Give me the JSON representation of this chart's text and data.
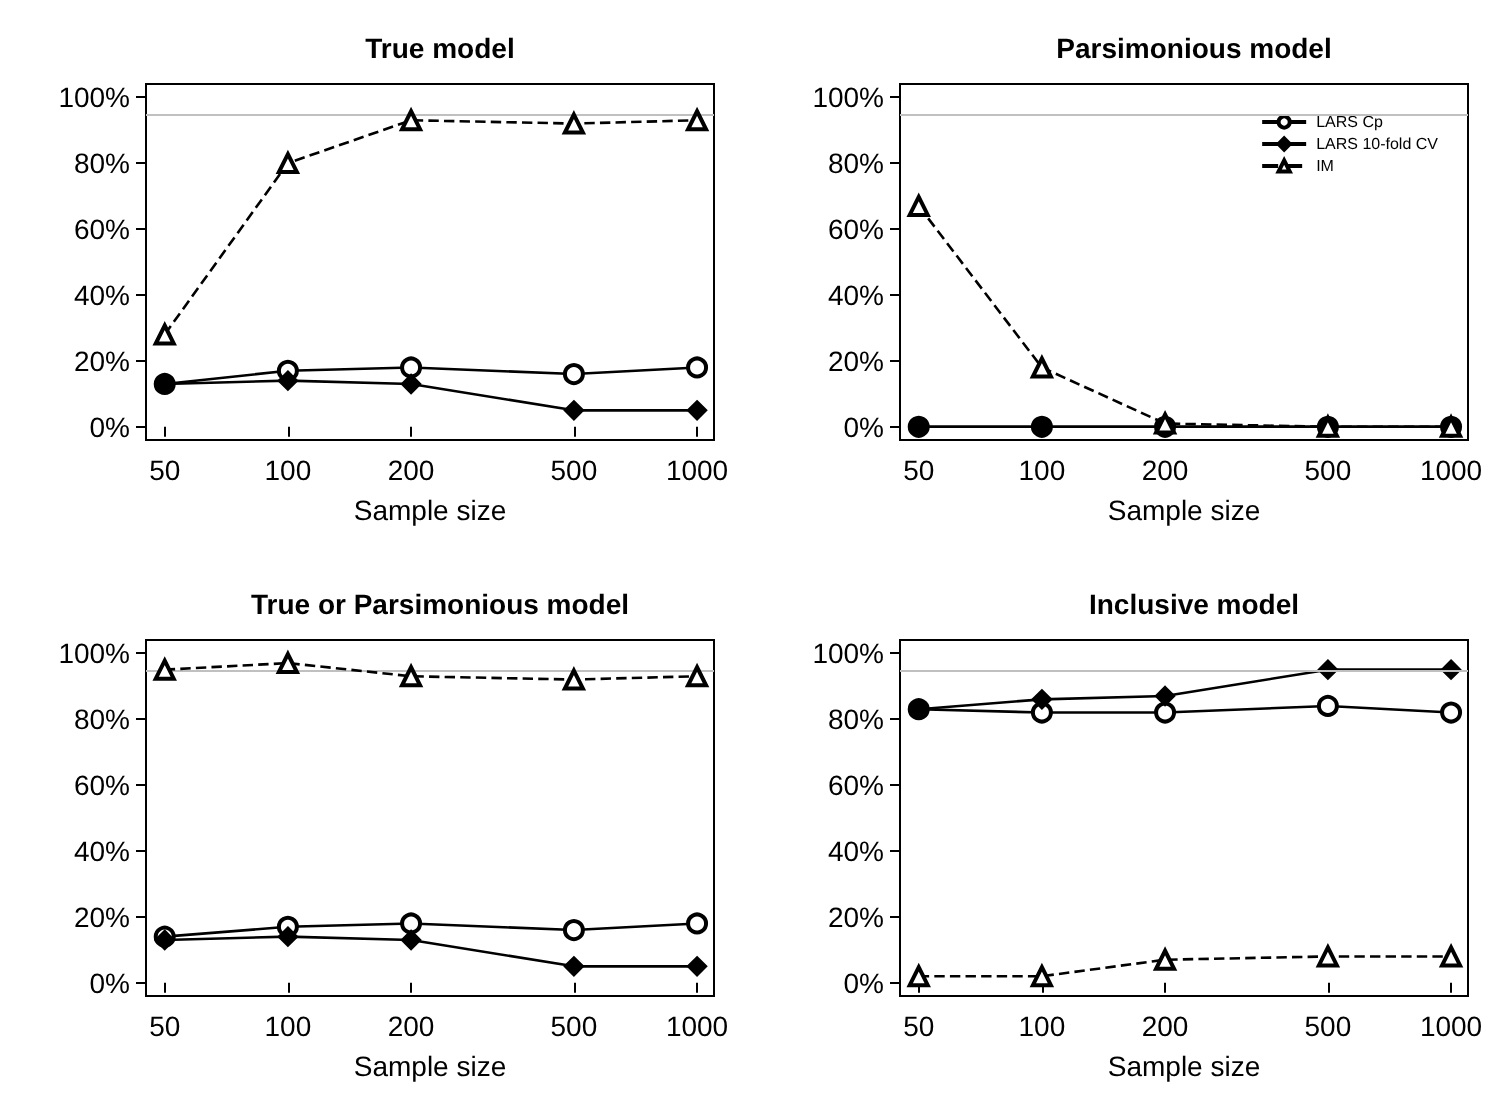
{
  "chart_data": [
    {
      "type": "line",
      "title": "True model",
      "xlabel": "Sample size",
      "x": [
        50,
        100,
        200,
        500,
        1000
      ],
      "log": "x",
      "xlim": [
        45,
        1100
      ],
      "xticks": [
        50,
        100,
        200,
        500,
        1000
      ],
      "ylim": [
        -4,
        104
      ],
      "yticks": [
        {
          "value": 0,
          "label": "0%"
        },
        {
          "value": 20,
          "label": "20%"
        },
        {
          "value": 40,
          "label": "40%"
        },
        {
          "value": 60,
          "label": "60%"
        },
        {
          "value": 80,
          "label": "80%"
        },
        {
          "value": 100,
          "label": "100%"
        }
      ],
      "grid": false,
      "legend": false,
      "ref_lines": [
        {
          "axis": "y",
          "value": 95,
          "color": "#c0c0c0"
        }
      ],
      "series": [
        {
          "color": "#000000",
          "marker": "circle",
          "line_style": "solid",
          "values": [
            13,
            17,
            18,
            16,
            18
          ]
        },
        {
          "color": "#000000",
          "marker": "diamond",
          "line_style": "solid",
          "values": [
            13,
            14,
            13,
            5,
            5
          ]
        },
        {
          "color": "#000000",
          "marker": "triangle",
          "line_style": "dashed",
          "values": [
            28,
            80,
            93,
            92,
            93
          ]
        }
      ]
    },
    {
      "type": "line",
      "title": "Parsimonious model",
      "xlabel": "Sample size",
      "x": [
        50,
        100,
        200,
        500,
        1000
      ],
      "log": "x",
      "xlim": [
        45,
        1100
      ],
      "xticks": [
        50,
        100,
        200,
        500,
        1000
      ],
      "ylim": [
        -4,
        104
      ],
      "yticks": [
        {
          "value": 0,
          "label": "0%"
        },
        {
          "value": 20,
          "label": "20%"
        },
        {
          "value": 40,
          "label": "40%"
        },
        {
          "value": 60,
          "label": "60%"
        },
        {
          "value": 80,
          "label": "80%"
        },
        {
          "value": 100,
          "label": "100%"
        }
      ],
      "grid": false,
      "legend": "top right",
      "ref_lines": [
        {
          "axis": "y",
          "value": 95,
          "color": "#c0c0c0"
        }
      ],
      "series": [
        {
          "name": "LARS Cp",
          "color": "#000000",
          "marker": "circle",
          "line_style": "solid",
          "values": [
            0,
            0,
            0,
            0,
            0
          ]
        },
        {
          "name": "LARS 10-fold CV",
          "color": "#000000",
          "marker": "diamond",
          "line_style": "solid",
          "values": [
            0,
            0,
            0,
            0,
            0
          ]
        },
        {
          "name": "IM",
          "color": "#000000",
          "marker": "triangle",
          "line_style": "dashed",
          "values": [
            67,
            18,
            1,
            0,
            0
          ]
        }
      ]
    },
    {
      "type": "line",
      "title": "True or Parsimonious model",
      "xlabel": "Sample size",
      "x": [
        50,
        100,
        200,
        500,
        1000
      ],
      "log": "x",
      "xlim": [
        45,
        1100
      ],
      "xticks": [
        50,
        100,
        200,
        500,
        1000
      ],
      "ylim": [
        -4,
        104
      ],
      "yticks": [
        {
          "value": 0,
          "label": "0%"
        },
        {
          "value": 20,
          "label": "20%"
        },
        {
          "value": 40,
          "label": "40%"
        },
        {
          "value": 60,
          "label": "60%"
        },
        {
          "value": 80,
          "label": "80%"
        },
        {
          "value": 100,
          "label": "100%"
        }
      ],
      "grid": false,
      "legend": false,
      "ref_lines": [
        {
          "axis": "y",
          "value": 95,
          "color": "#c0c0c0"
        }
      ],
      "series": [
        {
          "color": "#000000",
          "marker": "circle",
          "line_style": "solid",
          "values": [
            14,
            17,
            18,
            16,
            18
          ]
        },
        {
          "color": "#000000",
          "marker": "diamond",
          "line_style": "solid",
          "values": [
            13,
            14,
            13,
            5,
            5
          ]
        },
        {
          "color": "#000000",
          "marker": "triangle",
          "line_style": "dashed",
          "values": [
            95,
            97,
            93,
            92,
            93
          ]
        }
      ]
    },
    {
      "type": "line",
      "title": "Inclusive model",
      "xlabel": "Sample size",
      "x": [
        50,
        100,
        200,
        500,
        1000
      ],
      "log": "x",
      "xlim": [
        45,
        1100
      ],
      "xticks": [
        50,
        100,
        200,
        500,
        1000
      ],
      "ylim": [
        -4,
        104
      ],
      "yticks": [
        {
          "value": 0,
          "label": "0%"
        },
        {
          "value": 20,
          "label": "20%"
        },
        {
          "value": 40,
          "label": "40%"
        },
        {
          "value": 60,
          "label": "60%"
        },
        {
          "value": 80,
          "label": "80%"
        },
        {
          "value": 100,
          "label": "100%"
        }
      ],
      "grid": false,
      "legend": false,
      "ref_lines": [
        {
          "axis": "y",
          "value": 95,
          "color": "#c0c0c0"
        }
      ],
      "series": [
        {
          "color": "#000000",
          "marker": "circle",
          "line_style": "solid",
          "values": [
            83,
            82,
            82,
            84,
            82
          ]
        },
        {
          "color": "#000000",
          "marker": "diamond",
          "line_style": "solid",
          "values": [
            83,
            86,
            87,
            95,
            95
          ]
        },
        {
          "color": "#000000",
          "marker": "triangle",
          "line_style": "dashed",
          "values": [
            2,
            2,
            7,
            8,
            8
          ]
        }
      ]
    }
  ]
}
